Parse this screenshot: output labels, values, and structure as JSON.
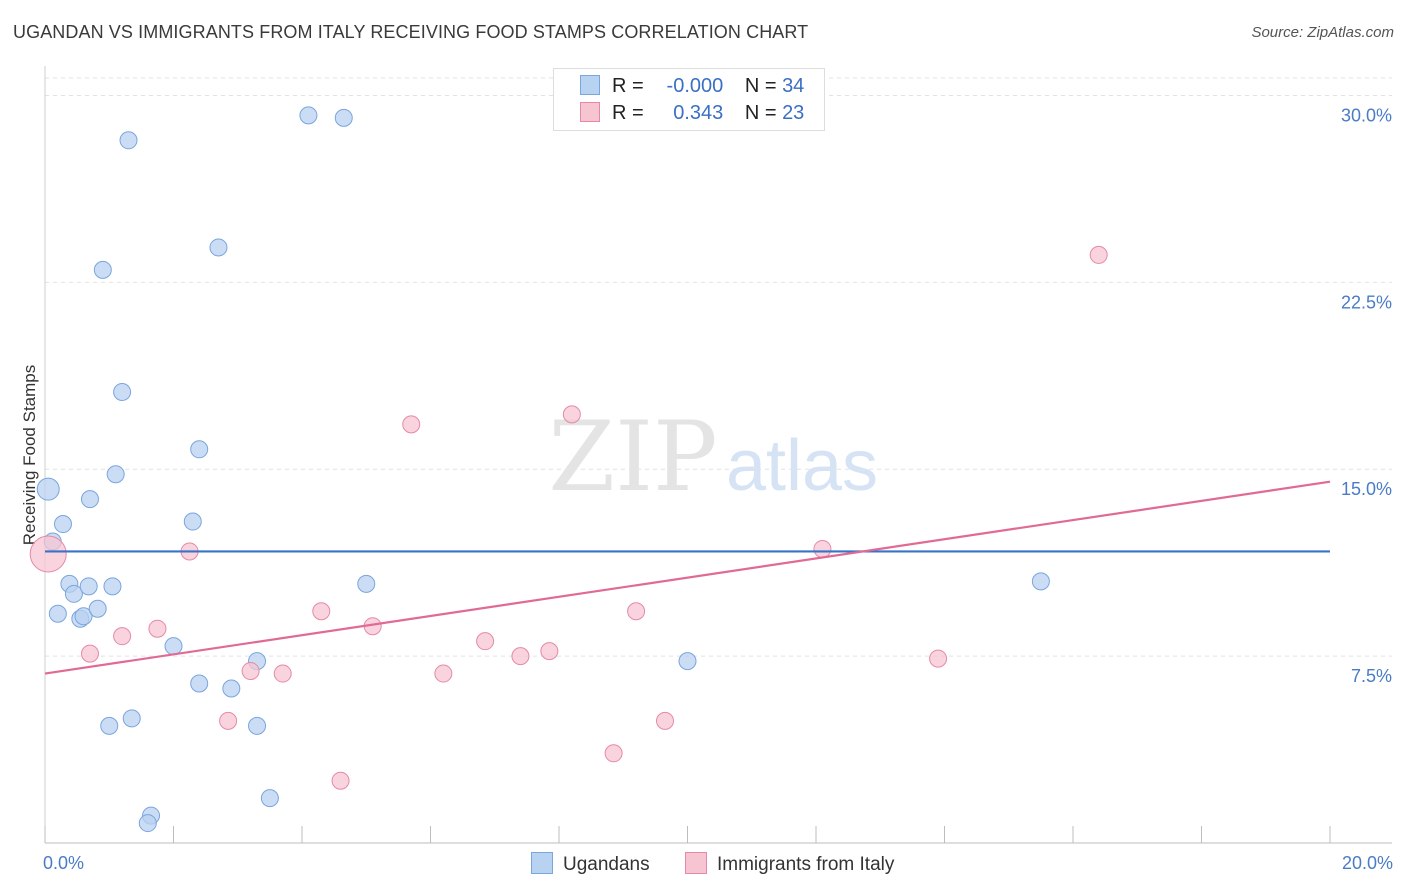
{
  "header": {
    "title": "UGANDAN VS IMMIGRANTS FROM ITALY RECEIVING FOOD STAMPS CORRELATION CHART",
    "source": "Source: ZipAtlas.com"
  },
  "watermark": {
    "zip": "ZIP",
    "atlas": "atlas"
  },
  "legend": {
    "r_label": "R =",
    "n_label": "N =",
    "rows": [
      {
        "r": "-0.000",
        "n": "34",
        "fill": "#b8d2f2",
        "stroke": "#7aa5dd"
      },
      {
        "r": "0.343",
        "n": "23",
        "fill": "#f7c4d2",
        "stroke": "#e58aa6"
      }
    ]
  },
  "chart_data": {
    "type": "scatter",
    "title": "UGANDAN VS IMMIGRANTS FROM ITALY RECEIVING FOOD STAMPS CORRELATION CHART",
    "xlabel": "",
    "ylabel": "Receiving Food Stamps",
    "xlim": [
      0,
      20
    ],
    "ylim": [
      0,
      30.7
    ],
    "y_ticks": [
      {
        "value": 7.5,
        "label": "7.5%"
      },
      {
        "value": 15.0,
        "label": "15.0%"
      },
      {
        "value": 22.5,
        "label": "22.5%"
      },
      {
        "value": 30.0,
        "label": "30.0%"
      }
    ],
    "x_tick_labels": [
      {
        "value": 0,
        "label": "0.0%"
      },
      {
        "value": 20,
        "label": "20.0%"
      }
    ],
    "x_minor_ticks": [
      0,
      2,
      4,
      6,
      8,
      10,
      12,
      14,
      16,
      18,
      20
    ],
    "grid": true,
    "series": [
      {
        "name": "Ugandans",
        "color": "#b8d2f2",
        "stroke": "#7aa5dd",
        "line_color": "#3773c6",
        "trend": {
          "x0": 0,
          "y0": 11.7,
          "x1": 20,
          "y1": 11.7
        },
        "points": [
          [
            0.05,
            14.2
          ],
          [
            0.12,
            12.1
          ],
          [
            0.28,
            12.8
          ],
          [
            0.7,
            13.8
          ],
          [
            0.2,
            9.2
          ],
          [
            0.38,
            10.4
          ],
          [
            0.45,
            10.0
          ],
          [
            0.55,
            9.0
          ],
          [
            0.6,
            9.1
          ],
          [
            0.68,
            10.3
          ],
          [
            0.82,
            9.4
          ],
          [
            1.05,
            10.3
          ],
          [
            1.1,
            14.8
          ],
          [
            1.2,
            18.1
          ],
          [
            0.9,
            23.0
          ],
          [
            1.3,
            28.2
          ],
          [
            2.4,
            15.8
          ],
          [
            2.3,
            12.9
          ],
          [
            2.7,
            23.9
          ],
          [
            4.1,
            29.2
          ],
          [
            4.65,
            29.1
          ],
          [
            1.0,
            4.7
          ],
          [
            1.35,
            5.0
          ],
          [
            2.0,
            7.9
          ],
          [
            2.4,
            6.4
          ],
          [
            2.9,
            6.2
          ],
          [
            3.3,
            7.3
          ],
          [
            3.3,
            4.7
          ],
          [
            3.5,
            1.8
          ],
          [
            1.65,
            1.1
          ],
          [
            1.6,
            0.8
          ],
          [
            5.0,
            10.4
          ],
          [
            10.0,
            7.3
          ],
          [
            15.5,
            10.5
          ]
        ]
      },
      {
        "name": "Immigrants from Italy",
        "color": "#f7c4d2",
        "stroke": "#e58aa6",
        "line_color": "#e06a95",
        "trend": {
          "x0": 0,
          "y0": 6.8,
          "x1": 20,
          "y1": 14.5
        },
        "points": [
          [
            0.05,
            11.6
          ],
          [
            0.7,
            7.6
          ],
          [
            1.2,
            8.3
          ],
          [
            1.75,
            8.6
          ],
          [
            2.25,
            11.7
          ],
          [
            2.85,
            4.9
          ],
          [
            3.2,
            6.9
          ],
          [
            3.7,
            6.8
          ],
          [
            4.3,
            9.3
          ],
          [
            4.6,
            2.5
          ],
          [
            5.1,
            8.7
          ],
          [
            5.7,
            16.8
          ],
          [
            6.2,
            6.8
          ],
          [
            6.85,
            8.1
          ],
          [
            7.4,
            7.5
          ],
          [
            7.85,
            7.7
          ],
          [
            8.2,
            17.2
          ],
          [
            8.85,
            3.6
          ],
          [
            9.2,
            9.3
          ],
          [
            9.65,
            4.9
          ],
          [
            12.1,
            11.8
          ],
          [
            13.9,
            7.4
          ],
          [
            16.4,
            23.6
          ]
        ]
      }
    ]
  }
}
